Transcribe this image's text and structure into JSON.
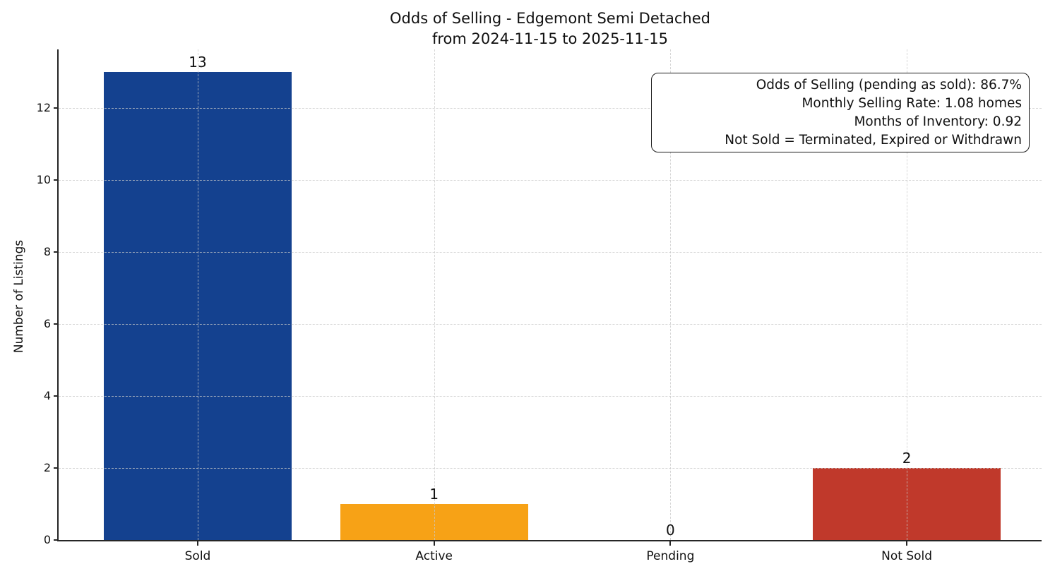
{
  "title": {
    "line1": "Odds of Selling - Edgemont Semi Detached",
    "line2": "from 2024-11-15 to 2025-11-15"
  },
  "annotation": {
    "lines": [
      "Odds of Selling (pending as sold): 86.7%",
      "Monthly Selling Rate: 1.08 homes",
      "Months of Inventory: 0.92",
      "Not Sold = Terminated, Expired or Withdrawn"
    ]
  },
  "chart_data": {
    "type": "bar",
    "title": "Odds of Selling - Edgemont Semi Detached from 2024-11-15 to 2025-11-15",
    "categories": [
      "Sold",
      "Active",
      "Pending",
      "Not Sold"
    ],
    "values": [
      13,
      1,
      0,
      2
    ],
    "value_labels": [
      "13",
      "1",
      "0",
      "2"
    ],
    "bar_colors": [
      "#14418f",
      "#f7a216",
      null,
      "#c0392b"
    ],
    "xlabel": "",
    "ylabel": "Number of Listings",
    "yticks": [
      0,
      2,
      4,
      6,
      8,
      10,
      12
    ],
    "ylim": [
      0,
      13.6
    ],
    "grid": "dashed, both axes, drawn above bars",
    "legend": "none",
    "annotation_box": "top-right, black rounded border, right-aligned text"
  },
  "colors": {
    "sold_bar": "#14418f",
    "active_bar": "#f7a216",
    "not_sold_bar": "#c0392b",
    "axis": "#262626",
    "grid": "#c9c9c9",
    "background": "#ffffff",
    "text": "#111111"
  }
}
